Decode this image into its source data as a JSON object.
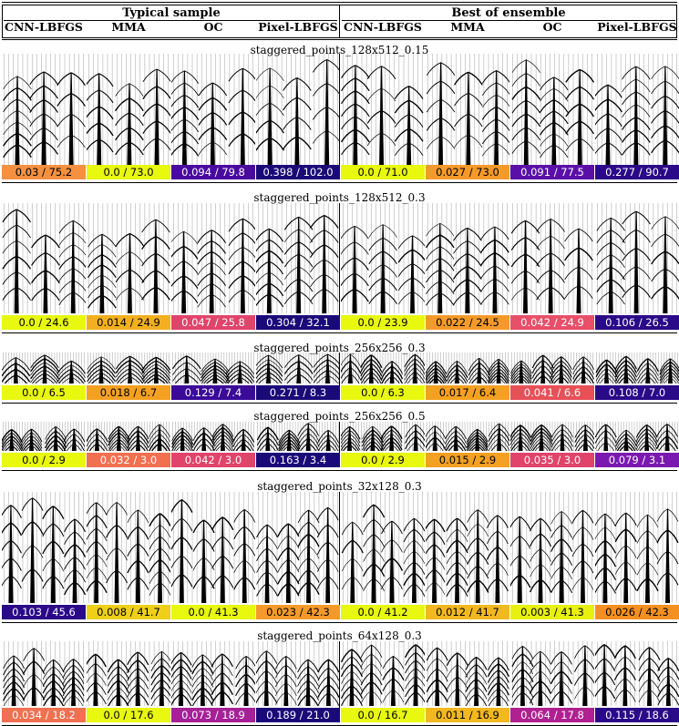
{
  "header": {
    "groups": [
      "Typical sample",
      "Best of ensemble"
    ],
    "columns": [
      "CNN-LBFGS",
      "MMA",
      "OC",
      "Pixel-LBFGS",
      "CNN-LBFGS",
      "MMA",
      "OC",
      "Pixel-LBFGS"
    ]
  },
  "colors": {
    "yellow": "#e8f80e",
    "orange": "#f49a2a",
    "salmon": "#f07050",
    "red_pink": "#e0446a",
    "magenta": "#a62097",
    "purple": "#7a19b0",
    "indigo": "#3a0a98",
    "navy": "#1a0a78"
  },
  "sections": [
    {
      "title": "staggered_points_128x512_0.15",
      "scores": [
        {
          "text": "0.03 / 75.2",
          "color": "#f49040"
        },
        {
          "text": "0.0 / 73.0",
          "color": "#e8f80e"
        },
        {
          "text": "0.094 / 79.8",
          "color": "#4a0aa0"
        },
        {
          "text": "0.398 / 102.0",
          "color": "#1a0a78"
        },
        {
          "text": "0.0 / 71.0",
          "color": "#e8f80e"
        },
        {
          "text": "0.027 / 73.0",
          "color": "#f49a2a"
        },
        {
          "text": "0.091 / 77.5",
          "color": "#5a10a8"
        },
        {
          "text": "0.277 / 90.7",
          "color": "#2a0a88"
        }
      ]
    },
    {
      "title": "staggered_points_128x512_0.3",
      "scores": [
        {
          "text": "0.0 / 24.6",
          "color": "#e8f80e"
        },
        {
          "text": "0.014 / 24.9",
          "color": "#f2b020"
        },
        {
          "text": "0.047 / 25.8",
          "color": "#e0446a"
        },
        {
          "text": "0.304 / 32.1",
          "color": "#1a0a78"
        },
        {
          "text": "0.0 / 23.9",
          "color": "#e8f80e"
        },
        {
          "text": "0.022 / 24.5",
          "color": "#f49a2a"
        },
        {
          "text": "0.042 / 24.9",
          "color": "#e8506a"
        },
        {
          "text": "0.106 / 26.5",
          "color": "#2a0a88"
        }
      ]
    },
    {
      "title": "staggered_points_256x256_0.3",
      "scores": [
        {
          "text": "0.0 / 6.5",
          "color": "#e8f80e"
        },
        {
          "text": "0.018 / 6.7",
          "color": "#f4a020"
        },
        {
          "text": "0.129 / 7.4",
          "color": "#3a0a98"
        },
        {
          "text": "0.271 / 8.3",
          "color": "#1a0a78"
        },
        {
          "text": "0.0 / 6.3",
          "color": "#e8f80e"
        },
        {
          "text": "0.017 / 6.4",
          "color": "#f4a020"
        },
        {
          "text": "0.041 / 6.6",
          "color": "#e85058"
        },
        {
          "text": "0.108 / 7.0",
          "color": "#2a0a88"
        }
      ]
    },
    {
      "title": "staggered_points_256x256_0.5",
      "scores": [
        {
          "text": "0.0 / 2.9",
          "color": "#e8f80e"
        },
        {
          "text": "0.032 / 3.0",
          "color": "#f07050"
        },
        {
          "text": "0.042 / 3.0",
          "color": "#e0446a"
        },
        {
          "text": "0.163 / 3.4",
          "color": "#1a0a78"
        },
        {
          "text": "0.0 / 2.9",
          "color": "#e8f80e"
        },
        {
          "text": "0.015 / 2.9",
          "color": "#f4a020"
        },
        {
          "text": "0.035 / 3.0",
          "color": "#e0446a"
        },
        {
          "text": "0.079 / 3.1",
          "color": "#7a19b0"
        }
      ]
    },
    {
      "title": "staggered_points_32x128_0.3",
      "scores": [
        {
          "text": "0.103 / 45.6",
          "color": "#2a0a88"
        },
        {
          "text": "0.008 / 41.7",
          "color": "#eed018"
        },
        {
          "text": "0.0 / 41.3",
          "color": "#e8f80e"
        },
        {
          "text": "0.023 / 42.3",
          "color": "#f49a2a"
        },
        {
          "text": "0.0 / 41.2",
          "color": "#e8f80e"
        },
        {
          "text": "0.012 / 41.7",
          "color": "#f2b820"
        },
        {
          "text": "0.003 / 41.3",
          "color": "#e8f010"
        },
        {
          "text": "0.026 / 42.3",
          "color": "#f49020"
        }
      ]
    },
    {
      "title": "staggered_points_64x128_0.3",
      "scores": [
        {
          "text": "0.034 / 18.2",
          "color": "#f07050"
        },
        {
          "text": "0.0 / 17.6",
          "color": "#e8f80e"
        },
        {
          "text": "0.073 / 18.9",
          "color": "#a62097"
        },
        {
          "text": "0.189 / 21.0",
          "color": "#1a0a78"
        },
        {
          "text": "0.0 / 16.7",
          "color": "#e8f80e"
        },
        {
          "text": "0.011 / 16.9",
          "color": "#f2b820"
        },
        {
          "text": "0.064 / 17.8",
          "color": "#b02090"
        },
        {
          "text": "0.115 / 18.6",
          "color": "#2a0a88"
        }
      ]
    }
  ]
}
